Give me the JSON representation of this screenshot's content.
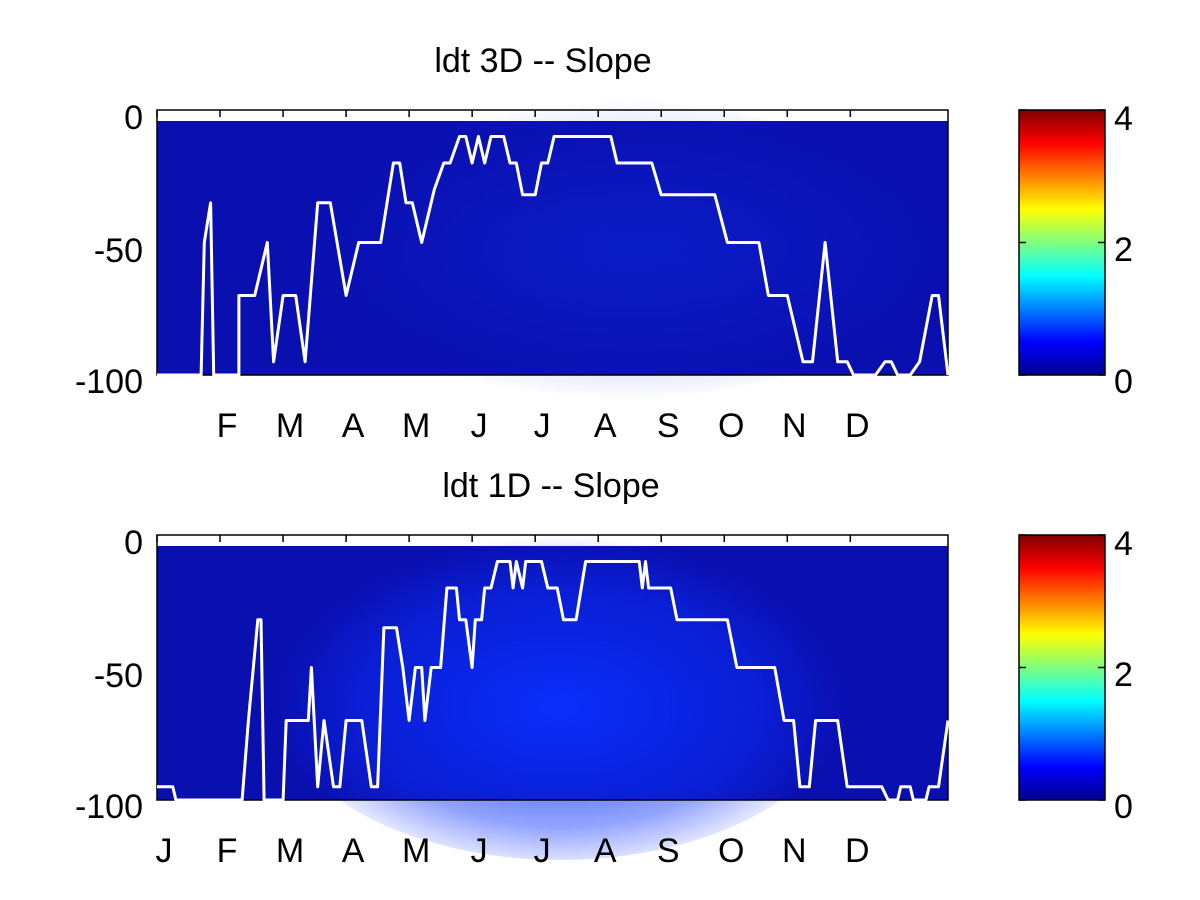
{
  "chart_data": [
    {
      "type": "heatmap",
      "title": "ldt 3D    -- Slope",
      "xlabel": "",
      "ylabel": "",
      "ylim": [
        -100,
        0
      ],
      "y_ticks": [
        "0",
        "-50",
        "-100"
      ],
      "x_tick_labels": [
        "",
        "F",
        "M",
        "A",
        "M",
        "J",
        "J",
        "A",
        "S",
        "O",
        "N",
        "D"
      ],
      "colorbar": {
        "min": 0,
        "max": 4,
        "ticks": [
          "0",
          "2",
          "4"
        ],
        "colormap": "jet"
      },
      "background_value": 0.25,
      "line_color": "#ffffff",
      "line_series": [
        [
          0,
          -100
        ],
        [
          0.7,
          -100
        ],
        [
          0.75,
          -50
        ],
        [
          0.85,
          -35
        ],
        [
          0.9,
          -100
        ],
        [
          1.3,
          -100
        ],
        [
          1.3,
          -70
        ],
        [
          1.55,
          -70
        ],
        [
          1.75,
          -50
        ],
        [
          1.85,
          -95
        ],
        [
          2.0,
          -70
        ],
        [
          2.2,
          -70
        ],
        [
          2.35,
          -95
        ],
        [
          2.55,
          -35
        ],
        [
          2.75,
          -35
        ],
        [
          3.0,
          -70
        ],
        [
          3.2,
          -50
        ],
        [
          3.55,
          -50
        ],
        [
          3.75,
          -20
        ],
        [
          3.85,
          -20
        ],
        [
          3.95,
          -35
        ],
        [
          4.05,
          -35
        ],
        [
          4.2,
          -50
        ],
        [
          4.4,
          -30
        ],
        [
          4.55,
          -20
        ],
        [
          4.65,
          -20
        ],
        [
          4.8,
          -10
        ],
        [
          4.9,
          -10
        ],
        [
          5.0,
          -20
        ],
        [
          5.1,
          -10
        ],
        [
          5.2,
          -20
        ],
        [
          5.3,
          -10
        ],
        [
          5.5,
          -10
        ],
        [
          5.6,
          -20
        ],
        [
          5.7,
          -20
        ],
        [
          5.8,
          -32
        ],
        [
          6.0,
          -32
        ],
        [
          6.1,
          -20
        ],
        [
          6.2,
          -20
        ],
        [
          6.3,
          -10
        ],
        [
          7.2,
          -10
        ],
        [
          7.3,
          -20
        ],
        [
          7.85,
          -20
        ],
        [
          8.0,
          -32
        ],
        [
          8.85,
          -32
        ],
        [
          9.05,
          -50
        ],
        [
          9.55,
          -50
        ],
        [
          9.7,
          -70
        ],
        [
          10.0,
          -70
        ],
        [
          10.25,
          -95
        ],
        [
          10.4,
          -95
        ],
        [
          10.6,
          -50
        ],
        [
          10.8,
          -95
        ],
        [
          10.95,
          -95
        ],
        [
          11.05,
          -100
        ],
        [
          11.4,
          -100
        ],
        [
          11.55,
          -95
        ],
        [
          11.65,
          -95
        ],
        [
          11.75,
          -100
        ],
        [
          11.95,
          -100
        ],
        [
          12.1,
          -95
        ],
        [
          12.3,
          -70
        ],
        [
          12.4,
          -70
        ],
        [
          12.55,
          -100
        ]
      ]
    },
    {
      "type": "heatmap",
      "title": "ldt 1D    -- Slope",
      "xlabel": "",
      "ylabel": "",
      "ylim": [
        -100,
        0
      ],
      "y_ticks": [
        "0",
        "-50",
        "-100"
      ],
      "x_tick_labels": [
        "J",
        "F",
        "M",
        "A",
        "M",
        "J",
        "J",
        "A",
        "S",
        "O",
        "N",
        "D"
      ],
      "colorbar": {
        "min": 0,
        "max": 4,
        "ticks": [
          "0",
          "2",
          "4"
        ],
        "colormap": "jet"
      },
      "background_value": 0.25,
      "line_color": "#ffffff",
      "line_series": [
        [
          0,
          -95
        ],
        [
          0.25,
          -95
        ],
        [
          0.3,
          -100
        ],
        [
          1.35,
          -100
        ],
        [
          1.45,
          -70
        ],
        [
          1.6,
          -32
        ],
        [
          1.65,
          -32
        ],
        [
          1.7,
          -100
        ],
        [
          2.0,
          -100
        ],
        [
          2.05,
          -70
        ],
        [
          2.4,
          -70
        ],
        [
          2.45,
          -50
        ],
        [
          2.55,
          -95
        ],
        [
          2.65,
          -70
        ],
        [
          2.8,
          -95
        ],
        [
          2.9,
          -95
        ],
        [
          3.0,
          -70
        ],
        [
          3.25,
          -70
        ],
        [
          3.4,
          -95
        ],
        [
          3.5,
          -95
        ],
        [
          3.6,
          -35
        ],
        [
          3.8,
          -35
        ],
        [
          3.9,
          -50
        ],
        [
          4.0,
          -70
        ],
        [
          4.1,
          -50
        ],
        [
          4.2,
          -50
        ],
        [
          4.25,
          -70
        ],
        [
          4.35,
          -50
        ],
        [
          4.5,
          -50
        ],
        [
          4.6,
          -20
        ],
        [
          4.75,
          -20
        ],
        [
          4.8,
          -32
        ],
        [
          4.9,
          -32
        ],
        [
          5.0,
          -50
        ],
        [
          5.05,
          -32
        ],
        [
          5.15,
          -32
        ],
        [
          5.2,
          -20
        ],
        [
          5.3,
          -20
        ],
        [
          5.4,
          -10
        ],
        [
          5.6,
          -10
        ],
        [
          5.65,
          -20
        ],
        [
          5.7,
          -10
        ],
        [
          5.8,
          -20
        ],
        [
          5.85,
          -10
        ],
        [
          6.1,
          -10
        ],
        [
          6.2,
          -20
        ],
        [
          6.35,
          -20
        ],
        [
          6.45,
          -32
        ],
        [
          6.65,
          -32
        ],
        [
          6.8,
          -10
        ],
        [
          7.65,
          -10
        ],
        [
          7.7,
          -20
        ],
        [
          7.75,
          -10
        ],
        [
          7.8,
          -20
        ],
        [
          8.15,
          -20
        ],
        [
          8.25,
          -32
        ],
        [
          9.05,
          -32
        ],
        [
          9.2,
          -50
        ],
        [
          9.8,
          -50
        ],
        [
          9.95,
          -70
        ],
        [
          10.1,
          -70
        ],
        [
          10.2,
          -95
        ],
        [
          10.35,
          -95
        ],
        [
          10.45,
          -70
        ],
        [
          10.8,
          -70
        ],
        [
          10.95,
          -95
        ],
        [
          11.5,
          -95
        ],
        [
          11.6,
          -100
        ],
        [
          11.75,
          -100
        ],
        [
          11.8,
          -95
        ],
        [
          11.95,
          -95
        ],
        [
          12.0,
          -100
        ],
        [
          12.2,
          -100
        ],
        [
          12.25,
          -95
        ],
        [
          12.4,
          -95
        ],
        [
          12.55,
          -70
        ]
      ]
    }
  ]
}
